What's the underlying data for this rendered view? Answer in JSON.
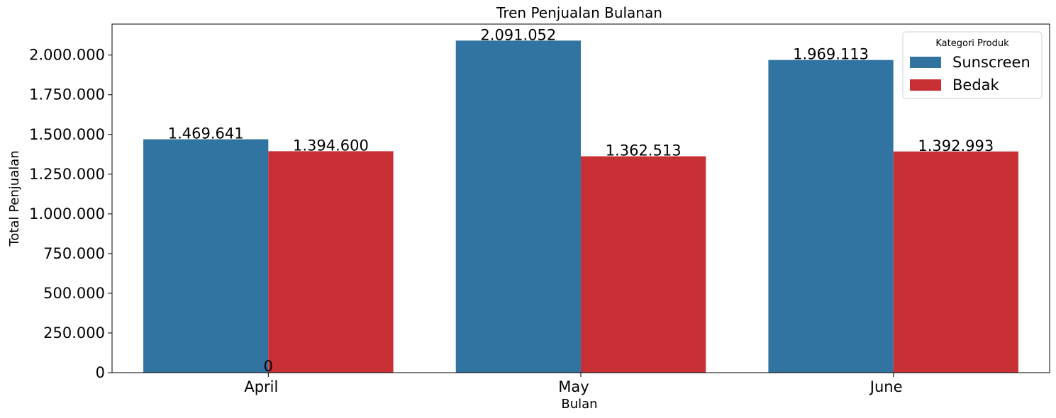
{
  "chart_data": {
    "type": "bar",
    "title": "Tren Penjualan Bulanan",
    "xlabel": "Bulan",
    "ylabel": "Total Penjualan",
    "categories": [
      "April",
      "May",
      "June"
    ],
    "series": [
      {
        "name": "Sunscreen",
        "color": "#3274a1",
        "values": [
          1469641,
          2091052,
          1969113
        ]
      },
      {
        "name": "Bedak",
        "color": "#c93035",
        "values": [
          1394600,
          1362513,
          1392993
        ]
      }
    ],
    "data_labels": [
      [
        "1.469.641",
        "2.091.052",
        "1.969.113"
      ],
      [
        "1.394.600",
        "1.362.513",
        "1.392.993"
      ]
    ],
    "extra_label": {
      "text": "0",
      "value": 0
    },
    "yticks": [
      0,
      250000,
      500000,
      750000,
      1000000,
      1250000,
      1500000,
      1750000,
      2000000
    ],
    "ytick_labels": [
      "0",
      "250.000",
      "500.000",
      "750.000",
      "1.000.000",
      "1.250.000",
      "1.500.000",
      "1.750.000",
      "2.000.000"
    ],
    "ylim": [
      0,
      2195000
    ],
    "legend": {
      "title": "Kategori Produk",
      "placement": "top-right"
    },
    "grid": false
  }
}
